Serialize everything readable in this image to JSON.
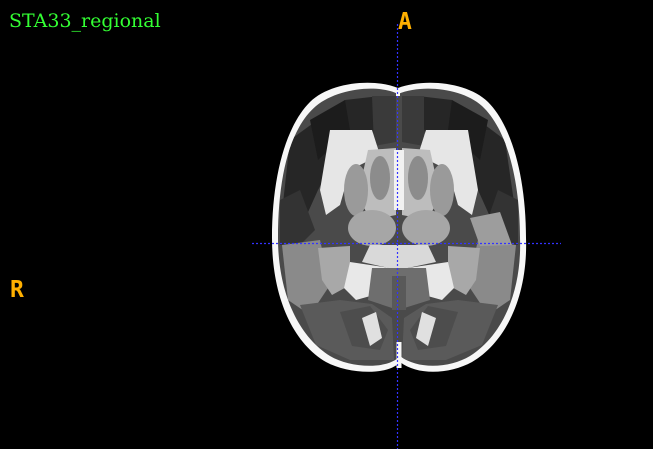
{
  "viewer": {
    "title": "STA33_regional",
    "orientation": {
      "anterior": "A",
      "right": "R"
    },
    "view": "axial",
    "colors": {
      "title": "#33ff33",
      "orientation_label": "#ffb000",
      "crosshair": "#3333ff",
      "background": "#000000"
    }
  }
}
